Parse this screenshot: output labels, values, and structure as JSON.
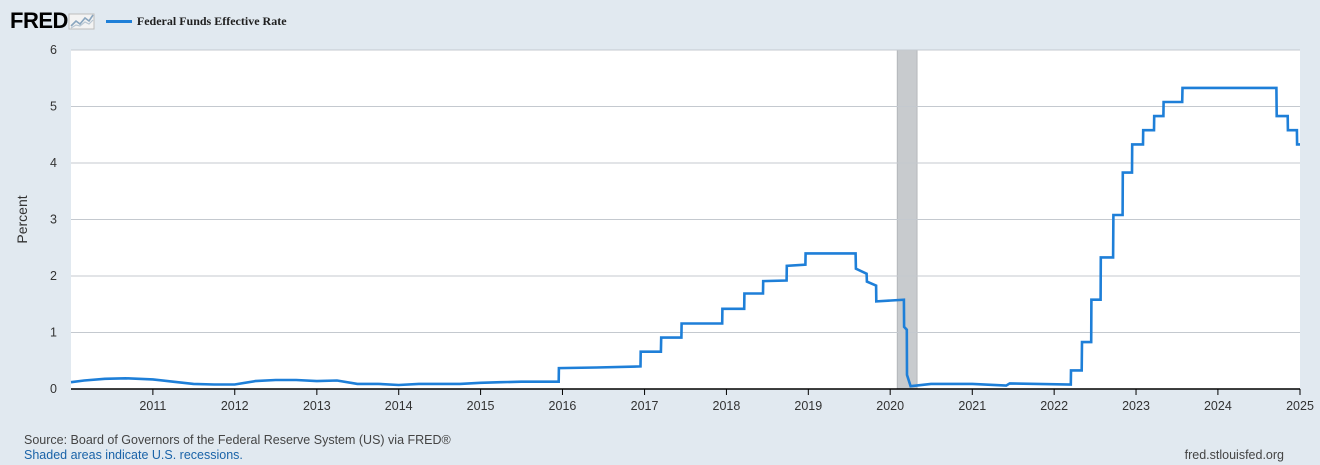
{
  "header": {
    "logo_text": "FRED",
    "logo_icon": "chart-sparkline-icon"
  },
  "colors": {
    "background": "#e1e9f0",
    "plot_background": "#ffffff",
    "series": "#1e7fd8",
    "recession": "#c8cbce",
    "grid": "#c4c9cf",
    "axis": "#000000",
    "text": "#333333",
    "link": "#1a63a8"
  },
  "chart_data": {
    "type": "line",
    "title": "",
    "ylabel": "Percent",
    "xlabel": "",
    "xlim": [
      "2010-01-01",
      "2025-01-01"
    ],
    "ylim": [
      0,
      6
    ],
    "yticks": [
      0,
      1,
      2,
      3,
      4,
      5,
      6
    ],
    "xticks": [
      "2011",
      "2012",
      "2013",
      "2014",
      "2015",
      "2016",
      "2017",
      "2018",
      "2019",
      "2020",
      "2021",
      "2022",
      "2023",
      "2024",
      "2025"
    ],
    "grid": true,
    "legend": "top-left",
    "recessions": [
      {
        "start": "2020-02-01",
        "end": "2020-04-30"
      }
    ],
    "series": [
      {
        "name": "Federal Funds Effective Rate",
        "points": [
          [
            "2010-01-01",
            0.12
          ],
          [
            "2010-03-01",
            0.15
          ],
          [
            "2010-06-01",
            0.18
          ],
          [
            "2010-09-01",
            0.19
          ],
          [
            "2011-01-01",
            0.17
          ],
          [
            "2011-04-01",
            0.13
          ],
          [
            "2011-07-01",
            0.09
          ],
          [
            "2011-10-01",
            0.08
          ],
          [
            "2012-01-01",
            0.08
          ],
          [
            "2012-04-01",
            0.14
          ],
          [
            "2012-07-01",
            0.16
          ],
          [
            "2012-10-01",
            0.16
          ],
          [
            "2013-01-01",
            0.14
          ],
          [
            "2013-04-01",
            0.15
          ],
          [
            "2013-07-01",
            0.09
          ],
          [
            "2013-10-01",
            0.09
          ],
          [
            "2014-01-01",
            0.07
          ],
          [
            "2014-04-01",
            0.09
          ],
          [
            "2014-07-01",
            0.09
          ],
          [
            "2014-10-01",
            0.09
          ],
          [
            "2015-01-01",
            0.11
          ],
          [
            "2015-04-01",
            0.12
          ],
          [
            "2015-07-01",
            0.13
          ],
          [
            "2015-12-15",
            0.13
          ],
          [
            "2015-12-16",
            0.37
          ],
          [
            "2016-06-01",
            0.38
          ],
          [
            "2016-12-14",
            0.4
          ],
          [
            "2016-12-15",
            0.66
          ],
          [
            "2017-03-15",
            0.66
          ],
          [
            "2017-03-16",
            0.91
          ],
          [
            "2017-06-14",
            0.91
          ],
          [
            "2017-06-15",
            1.16
          ],
          [
            "2017-12-13",
            1.16
          ],
          [
            "2017-12-14",
            1.42
          ],
          [
            "2018-03-21",
            1.42
          ],
          [
            "2018-03-22",
            1.69
          ],
          [
            "2018-06-13",
            1.69
          ],
          [
            "2018-06-14",
            1.91
          ],
          [
            "2018-09-26",
            1.92
          ],
          [
            "2018-09-27",
            2.18
          ],
          [
            "2018-12-19",
            2.2
          ],
          [
            "2018-12-20",
            2.4
          ],
          [
            "2019-07-31",
            2.4
          ],
          [
            "2019-08-01",
            2.13
          ],
          [
            "2019-09-18",
            2.04
          ],
          [
            "2019-09-19",
            1.9
          ],
          [
            "2019-10-30",
            1.83
          ],
          [
            "2019-10-31",
            1.55
          ],
          [
            "2020-03-02",
            1.58
          ],
          [
            "2020-03-03",
            1.1
          ],
          [
            "2020-03-15",
            1.05
          ],
          [
            "2020-03-16",
            0.25
          ],
          [
            "2020-04-01",
            0.05
          ],
          [
            "2020-07-01",
            0.09
          ],
          [
            "2021-01-01",
            0.09
          ],
          [
            "2021-06-01",
            0.06
          ],
          [
            "2021-06-17",
            0.1
          ],
          [
            "2022-03-16",
            0.08
          ],
          [
            "2022-03-17",
            0.33
          ],
          [
            "2022-05-04",
            0.33
          ],
          [
            "2022-05-05",
            0.83
          ],
          [
            "2022-06-15",
            0.83
          ],
          [
            "2022-06-16",
            1.58
          ],
          [
            "2022-07-27",
            1.58
          ],
          [
            "2022-07-28",
            2.33
          ],
          [
            "2022-09-21",
            2.33
          ],
          [
            "2022-09-22",
            3.08
          ],
          [
            "2022-11-02",
            3.08
          ],
          [
            "2022-11-03",
            3.83
          ],
          [
            "2022-12-14",
            3.83
          ],
          [
            "2022-12-15",
            4.33
          ],
          [
            "2023-02-01",
            4.33
          ],
          [
            "2023-02-02",
            4.58
          ],
          [
            "2023-03-22",
            4.58
          ],
          [
            "2023-03-23",
            4.83
          ],
          [
            "2023-05-03",
            4.83
          ],
          [
            "2023-05-04",
            5.08
          ],
          [
            "2023-07-26",
            5.08
          ],
          [
            "2023-07-27",
            5.33
          ],
          [
            "2024-09-18",
            5.33
          ],
          [
            "2024-09-19",
            4.83
          ],
          [
            "2024-11-07",
            4.83
          ],
          [
            "2024-11-08",
            4.58
          ],
          [
            "2024-12-18",
            4.58
          ],
          [
            "2024-12-19",
            4.33
          ],
          [
            "2025-01-01",
            4.33
          ]
        ]
      }
    ]
  },
  "footer": {
    "source": "Source: Board of Governors of the Federal Reserve System (US) via FRED®",
    "recession_note": "Shaded areas indicate U.S. recessions.",
    "site": "fred.stlouisfed.org"
  }
}
